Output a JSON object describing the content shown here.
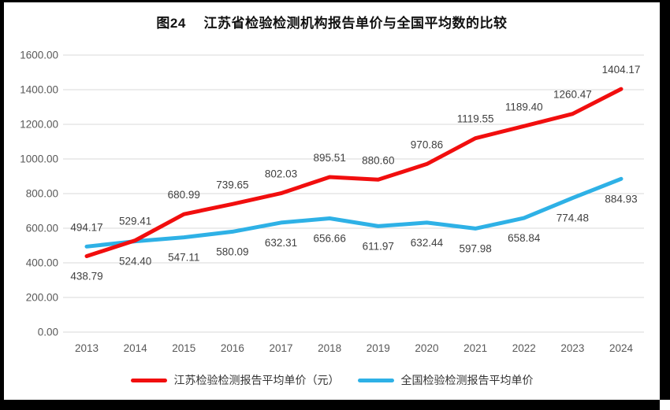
{
  "title": "图24　 江苏省检验检测机构报告单价与全国平均数的比较",
  "chart_data": {
    "type": "line",
    "categories": [
      "2013",
      "2014",
      "2015",
      "2016",
      "2017",
      "2018",
      "2019",
      "2020",
      "2021",
      "2022",
      "2023",
      "2024"
    ],
    "series": [
      {
        "name": "江苏检验检测报告平均单价（元）",
        "color": "#f10e0e",
        "values": [
          438.79,
          529.41,
          680.99,
          739.65,
          802.03,
          895.51,
          880.6,
          970.86,
          1119.55,
          1189.4,
          1260.47,
          1404.17
        ],
        "label_sides": [
          "below",
          "above",
          "above",
          "above",
          "above",
          "above",
          "above",
          "above",
          "above",
          "above",
          "above",
          "above"
        ]
      },
      {
        "name": "全国检验检测报告平均单价",
        "color": "#2eb1e6",
        "values": [
          494.17,
          524.4,
          547.11,
          580.09,
          632.31,
          656.66,
          611.97,
          632.44,
          597.98,
          658.84,
          774.48,
          884.93
        ],
        "label_sides": [
          "above",
          "below",
          "below",
          "below",
          "below",
          "below",
          "below",
          "below",
          "below",
          "below",
          "below",
          "below"
        ]
      }
    ],
    "ylim": [
      0,
      1600
    ],
    "ytick_labels": [
      "0.00",
      "200.00",
      "400.00",
      "600.00",
      "800.00",
      "1000.00",
      "1200.00",
      "1400.00",
      "1600.00"
    ],
    "ytick_values": [
      0,
      200,
      400,
      600,
      800,
      1000,
      1200,
      1400,
      1600
    ],
    "grid": true,
    "legend_position": "bottom",
    "axis_label_color": "#595959",
    "data_label_color": "#404040",
    "gridline_color": "#d9d9d9"
  }
}
